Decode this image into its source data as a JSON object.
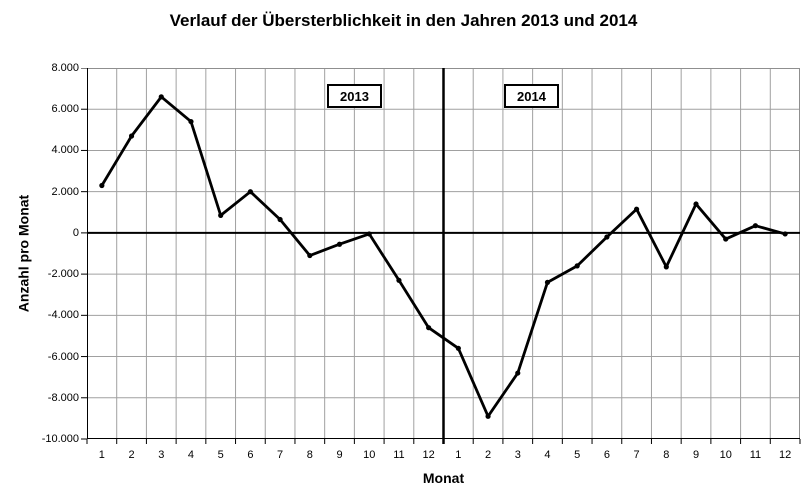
{
  "title": "Verlauf der Übersterblichkeit in den Jahren 2013 und 2014",
  "chart_data": {
    "type": "line",
    "title": "Verlauf der Übersterblichkeit in den Jahren 2013 und 2014",
    "xlabel": "Monat",
    "ylabel": "Anzahl pro Monat",
    "ylim": [
      -10000,
      8000
    ],
    "ytick_step": 2000,
    "ytick_labels": [
      "8.000",
      "6.000",
      "4.000",
      "2.000",
      "0",
      "-2.000",
      "-4.000",
      "-6.000",
      "-8.000",
      "-10.000"
    ],
    "categories": [
      "1",
      "2",
      "3",
      "4",
      "5",
      "6",
      "7",
      "8",
      "9",
      "10",
      "11",
      "12",
      "1",
      "2",
      "3",
      "4",
      "5",
      "6",
      "7",
      "8",
      "9",
      "10",
      "11",
      "12"
    ],
    "values": [
      2300,
      4700,
      6600,
      5400,
      850,
      2000,
      650,
      -1100,
      -550,
      -50,
      -2300,
      -4600,
      -5600,
      -8900,
      -6800,
      -2400,
      -1600,
      -200,
      1150,
      -1650,
      1400,
      -300,
      350,
      -50
    ],
    "annotations": [
      {
        "label": "2013"
      },
      {
        "label": "2014"
      }
    ],
    "divider_after_index": 11,
    "grid": true,
    "legend": "none",
    "colors": {
      "line": "#000000",
      "marker": "#000000",
      "grid": "#a0a0a0",
      "plot_border": "#8f8f8f",
      "zero_line": "#000000",
      "divider": "#000000",
      "axis": "#000000",
      "background": "#ffffff"
    }
  }
}
